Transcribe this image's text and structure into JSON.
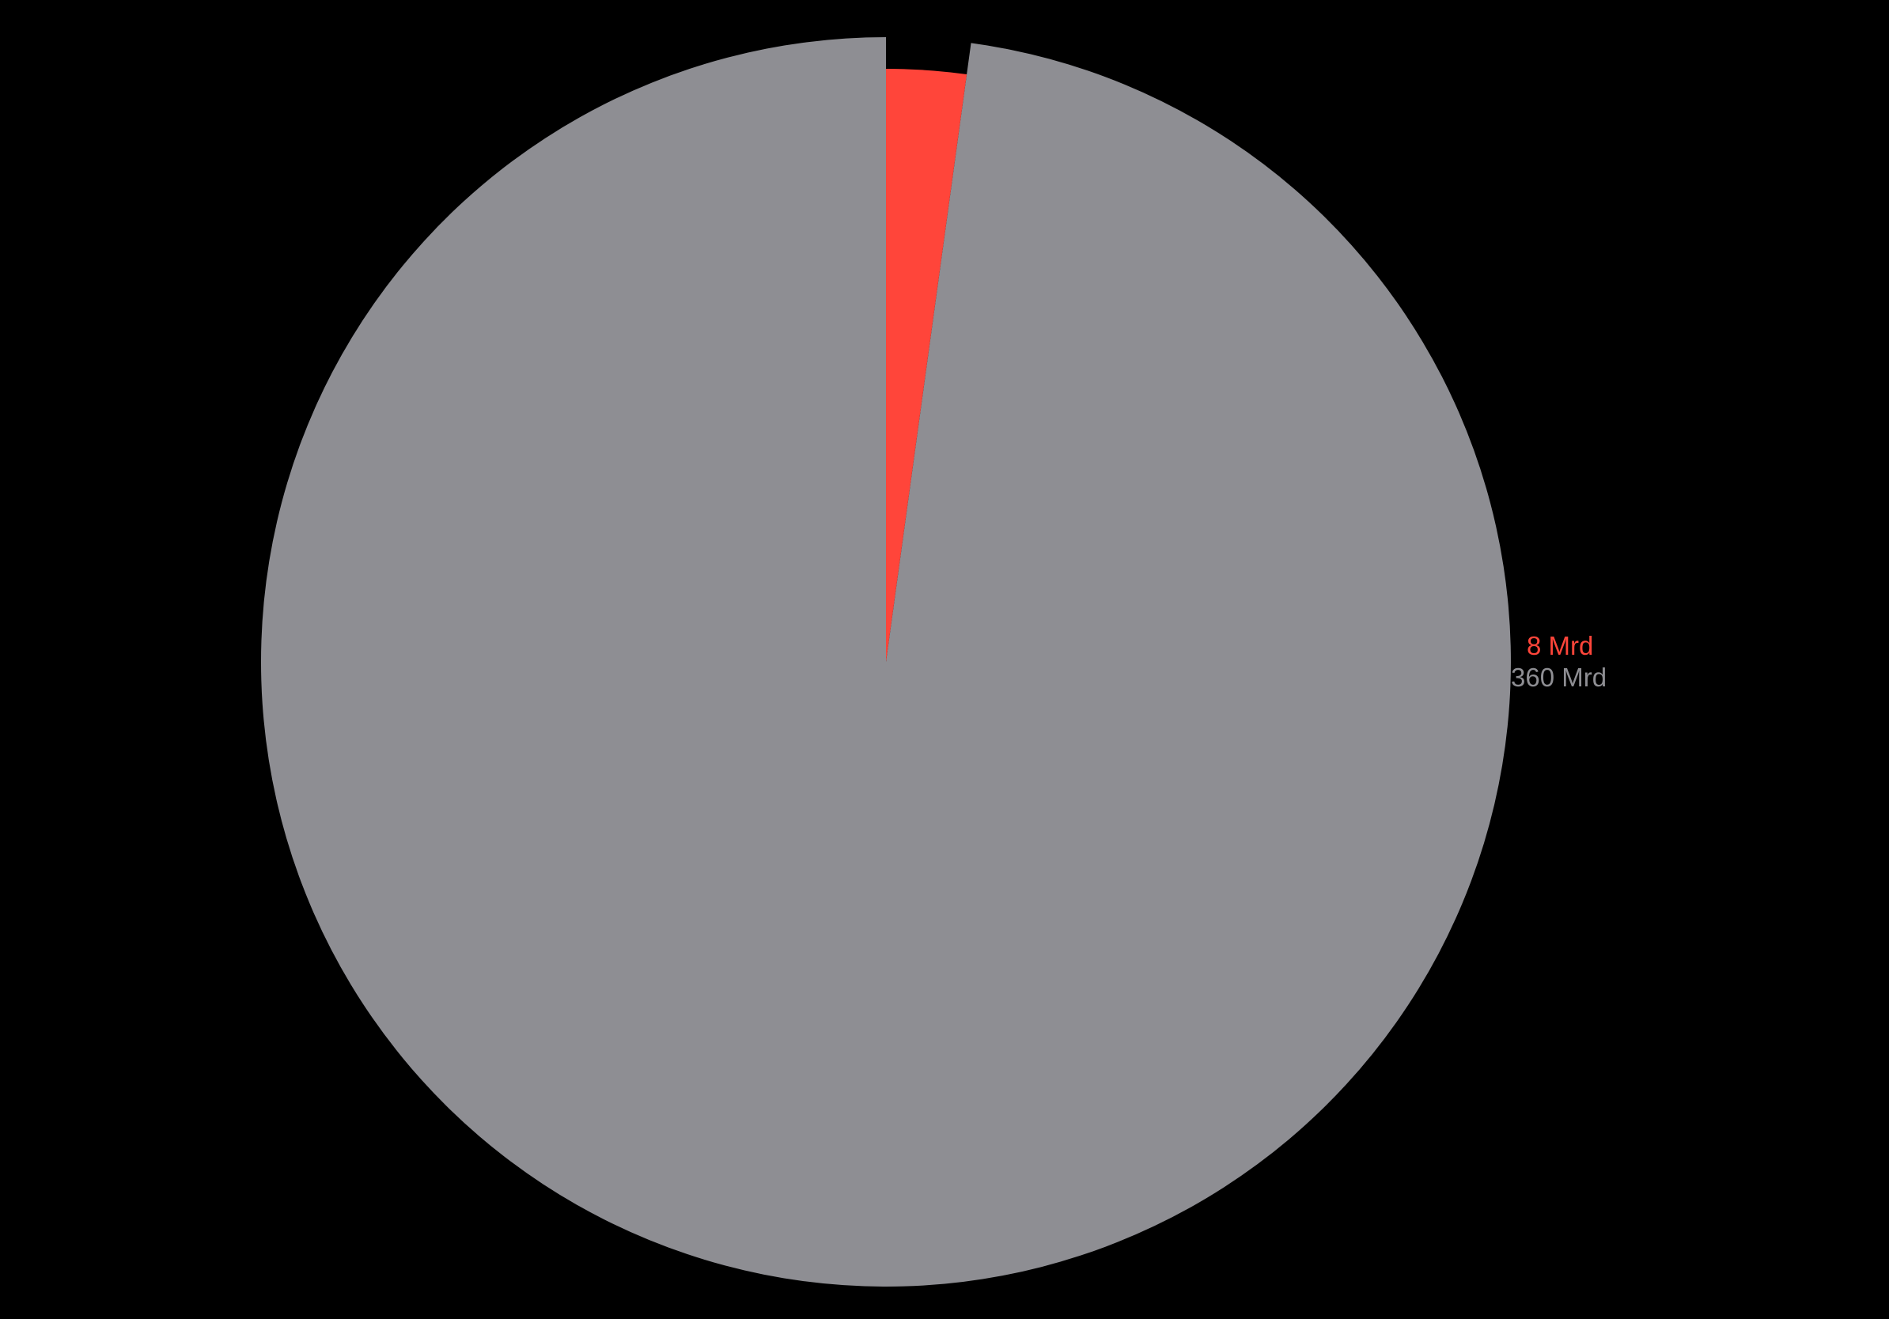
{
  "chart_data": {
    "type": "pie",
    "title": "",
    "slices": [
      {
        "label": "8 Mrd",
        "value": 8,
        "color": "#ff453a"
      },
      {
        "label": "360 Mrd",
        "value": 360,
        "color": "#8e8e93"
      }
    ],
    "start_angle": "top",
    "direction": "clockwise",
    "legend": "none",
    "label_placement": "right"
  },
  "background": "#000000"
}
